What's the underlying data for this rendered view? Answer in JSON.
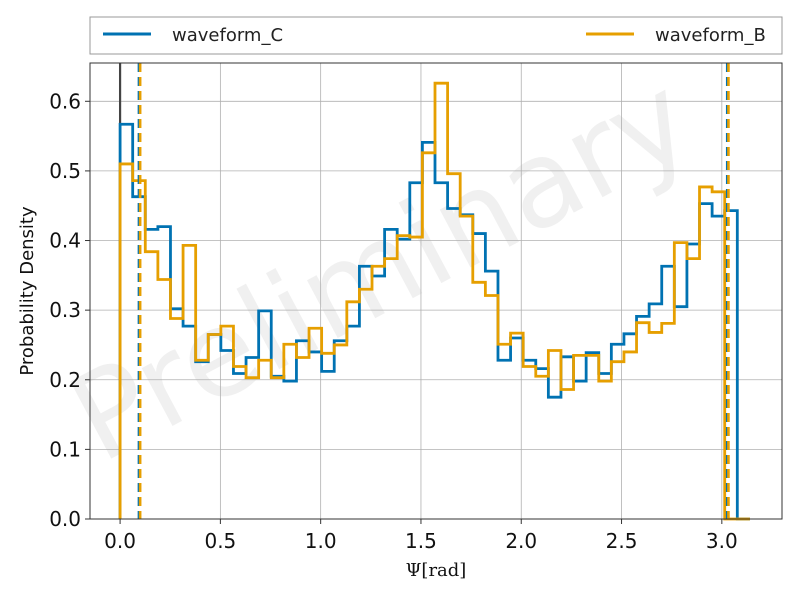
{
  "chart_data": {
    "type": "histogram",
    "xlabel": "Ψ[rad]",
    "ylabel": "Probability Density",
    "watermark": "Preliminary",
    "xlim": [
      -0.15,
      3.3
    ],
    "ylim": [
      0,
      0.655
    ],
    "xticks": [
      0.0,
      0.5,
      1.0,
      1.5,
      2.0,
      2.5,
      3.0
    ],
    "xtick_labels": [
      "0.0",
      "0.5",
      "1.0",
      "1.5",
      "2.0",
      "2.5",
      "3.0"
    ],
    "yticks": [
      0.0,
      0.1,
      0.2,
      0.3,
      0.4,
      0.5,
      0.6
    ],
    "ytick_labels": [
      "0.0",
      "0.1",
      "0.2",
      "0.3",
      "0.4",
      "0.5",
      "0.6"
    ],
    "grid": true,
    "legend_placement": "above plot",
    "bin_edges_start": 0.0,
    "bin_width": 0.0628,
    "series": [
      {
        "name": "waveform_C",
        "color": "#0072B2",
        "values": [
          0.567,
          0.463,
          0.416,
          0.42,
          0.302,
          0.277,
          0.226,
          0.265,
          0.242,
          0.209,
          0.232,
          0.299,
          0.205,
          0.198,
          0.256,
          0.24,
          0.212,
          0.256,
          0.277,
          0.363,
          0.349,
          0.416,
          0.402,
          0.483,
          0.541,
          0.483,
          0.446,
          0.437,
          0.41,
          0.356,
          0.228,
          0.26,
          0.228,
          0.216,
          0.175,
          0.233,
          0.198,
          0.239,
          0.209,
          0.251,
          0.266,
          0.291,
          0.309,
          0.363,
          0.305,
          0.395,
          0.453,
          0.435,
          0.443,
          0.0
        ],
        "median_line": 0.097,
        "upper_line": 3.03
      },
      {
        "name": "waveform_B",
        "color": "#E69F00",
        "values": [
          0.51,
          0.486,
          0.384,
          0.344,
          0.288,
          0.393,
          0.228,
          0.265,
          0.277,
          0.219,
          0.203,
          0.228,
          0.203,
          0.251,
          0.232,
          0.274,
          0.238,
          0.25,
          0.312,
          0.33,
          0.363,
          0.374,
          0.407,
          0.405,
          0.526,
          0.626,
          0.496,
          0.435,
          0.34,
          0.321,
          0.251,
          0.267,
          0.219,
          0.205,
          0.242,
          0.186,
          0.235,
          0.235,
          0.198,
          0.226,
          0.24,
          0.282,
          0.268,
          0.281,
          0.397,
          0.374,
          0.477,
          0.47,
          0.0,
          0.0
        ],
        "median_line": 0.097,
        "upper_line": 3.03
      }
    ],
    "reference_line": 0.0
  }
}
